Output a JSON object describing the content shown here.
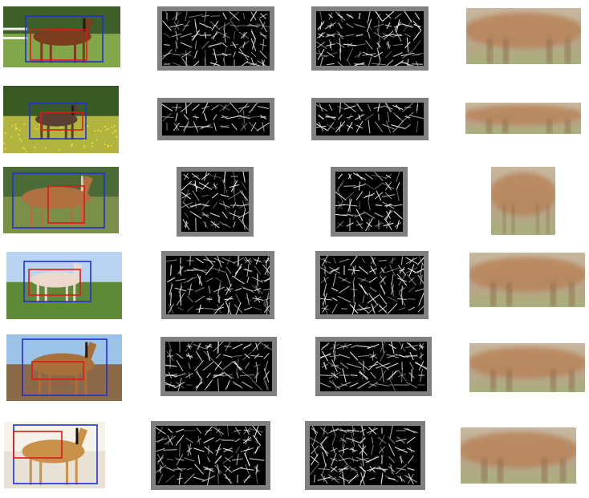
{
  "figure": {
    "rows": [
      {
        "id": "row-1",
        "scene": "field-fence",
        "horse": "bay"
      },
      {
        "id": "row-2",
        "scene": "meadow-flowers",
        "horse": "group"
      },
      {
        "id": "row-3",
        "scene": "pasture",
        "horse": "chestnut"
      },
      {
        "id": "row-4",
        "scene": "grass-sky",
        "horse": "cream"
      },
      {
        "id": "row-5",
        "scene": "dirt-sky",
        "horse": "bay-dark-mane"
      },
      {
        "id": "row-6",
        "scene": "studio-white",
        "horse": "buckskin"
      }
    ],
    "columns": [
      "photo-with-boxes",
      "hog-template-a",
      "hog-template-b",
      "average-crop"
    ],
    "colors": {
      "blue_box": "#1f2fd8",
      "red_box": "#e01818",
      "hog_frame": "#808080",
      "hog_bg": "#000000",
      "hog_stroke": "#e8e8e8"
    }
  }
}
